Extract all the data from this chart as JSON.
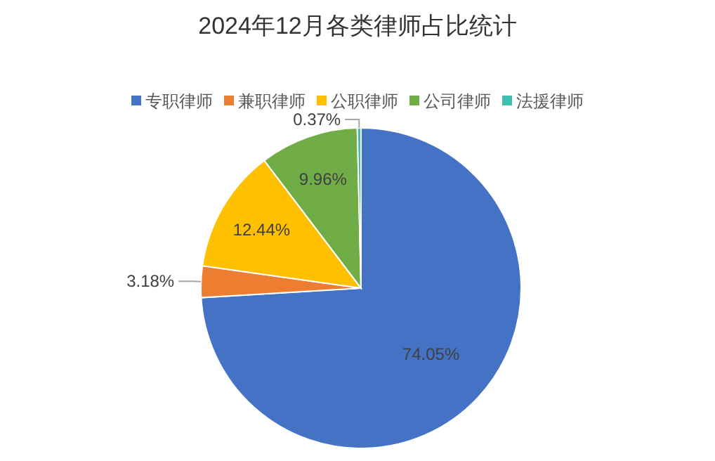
{
  "chart_data": {
    "type": "pie",
    "title": "2024年12月各类律师占比统计",
    "categories": [
      "专职律师",
      "兼职律师",
      "公职律师",
      "公司律师",
      "法援律师"
    ],
    "values": [
      74.05,
      3.18,
      12.44,
      9.96,
      0.37
    ],
    "colors": [
      "#4472c4",
      "#ed7d31",
      "#ffc000",
      "#70ad47",
      "#3fbfad"
    ],
    "value_labels": [
      "74.05%",
      "3.18%",
      "12.44%",
      "9.96%",
      "0.37%"
    ],
    "legend": "top"
  }
}
